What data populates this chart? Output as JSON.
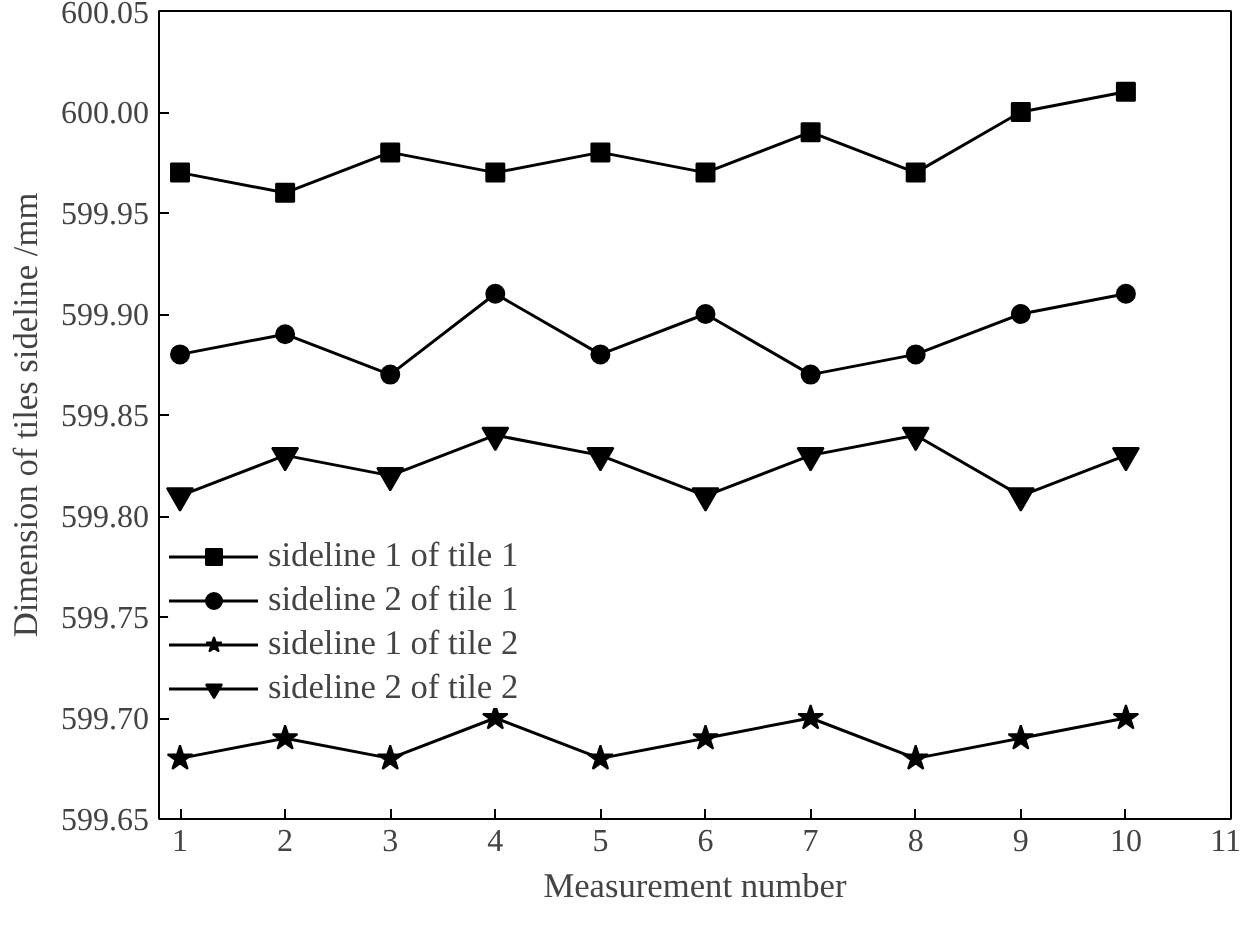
{
  "chart_data": {
    "type": "line",
    "xlabel": "Measurement number",
    "ylabel": "Dimension of tiles sideline /mm",
    "x": [
      1,
      2,
      3,
      4,
      5,
      6,
      7,
      8,
      9,
      10
    ],
    "xlim": [
      0.8,
      11
    ],
    "xticks": [
      1,
      2,
      3,
      4,
      5,
      6,
      7,
      8,
      9,
      10,
      11
    ],
    "ylim": [
      599.65,
      600.05
    ],
    "yticks": [
      {
        "value": 599.65,
        "label": "599.65"
      },
      {
        "value": 599.7,
        "label": "599.70"
      },
      {
        "value": 599.75,
        "label": "599.75"
      },
      {
        "value": 599.8,
        "label": "599.80"
      },
      {
        "value": 599.85,
        "label": "599.85"
      },
      {
        "value": 599.9,
        "label": "599.90"
      },
      {
        "value": 599.95,
        "label": "599.95"
      },
      {
        "value": 600.0,
        "label": "600.00"
      },
      {
        "value": 600.05,
        "label": "600.05"
      }
    ],
    "grid": false,
    "legend": "left",
    "line_style": "solid",
    "series": [
      {
        "name": "sideline 1 of tile 1",
        "color": "#000000",
        "marker": "square",
        "values": [
          599.97,
          599.96,
          599.98,
          599.97,
          599.98,
          599.97,
          599.99,
          599.97,
          600.0,
          600.01
        ]
      },
      {
        "name": "sideline 2 of tile 1",
        "color": "#000000",
        "marker": "circle",
        "values": [
          599.88,
          599.89,
          599.87,
          599.91,
          599.88,
          599.9,
          599.87,
          599.88,
          599.9,
          599.91
        ]
      },
      {
        "name": "sideline 1 of tile 2",
        "color": "#000000",
        "marker": "star",
        "values": [
          599.68,
          599.69,
          599.68,
          599.7,
          599.68,
          599.69,
          599.7,
          599.68,
          599.69,
          599.7
        ]
      },
      {
        "name": "sideline 2 of tile 2",
        "color": "#000000",
        "marker": "triangle",
        "values": [
          599.81,
          599.83,
          599.82,
          599.84,
          599.83,
          599.81,
          599.83,
          599.84,
          599.81,
          599.83
        ]
      }
    ]
  }
}
